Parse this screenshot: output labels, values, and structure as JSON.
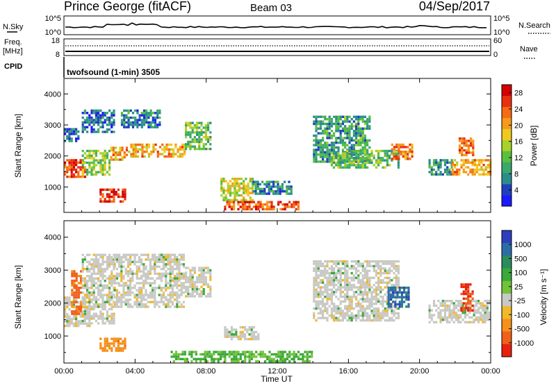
{
  "header": {
    "station": "Prince George (fitACF)",
    "beam": "Beam 03",
    "date": "04/Sep/2017"
  },
  "top_panels": {
    "nsky_label": "N.Sky",
    "nsky_ticks": [
      "10^5",
      "10^0"
    ],
    "nsearch_label": "N.Search",
    "nsearch_ticks": [
      "10^5",
      "10^0"
    ],
    "freq_label_1": "Freq.",
    "freq_label_2": "[MHz]",
    "freq_ticks": [
      "18",
      "8"
    ],
    "nave_label": "Nave",
    "nave_ticks": [
      "60",
      "0"
    ],
    "cpid_label": "CPID",
    "cpid_value": "twofsound (1-min) 3505"
  },
  "colors": {
    "power_scale": [
      "#1a1aff",
      "#1f3fbf",
      "#2a8c8c",
      "#3aa86a",
      "#5abf3c",
      "#a8d12a",
      "#f0c81e",
      "#f59a1a",
      "#f56a14",
      "#e8300f",
      "#d40000"
    ],
    "velocity_scale": [
      "#2d3fbf",
      "#2b6ea6",
      "#2b8c5e",
      "#3aa83a",
      "#72c23a",
      "#c8c8c4",
      "#f0b82a",
      "#f5901a",
      "#f0601a",
      "#e8200f"
    ]
  },
  "chart_data": [
    {
      "type": "heatmap",
      "title": "",
      "quantity": "Power",
      "xlabel": "",
      "ylabel": "Slant Range [km]",
      "x_ticks": [
        "00:00",
        "04:00",
        "08:00",
        "12:00",
        "16:00",
        "20:00",
        "00:00"
      ],
      "xlim_hours": [
        0,
        24
      ],
      "y_ticks": [
        1000,
        2000,
        3000,
        4000
      ],
      "ylim_km": [
        180,
        4500
      ],
      "colorbar_label": "Power [dB]",
      "colorbar_ticks": [
        4,
        8,
        12,
        16,
        20,
        24,
        28
      ],
      "colorbar_range": [
        0,
        30
      ],
      "echo_regions": [
        {
          "t0": 0.0,
          "t1": 1.2,
          "r0": 1300,
          "r1": 1900,
          "level": 26
        },
        {
          "t0": 0.0,
          "t1": 0.8,
          "r0": 2500,
          "r1": 2900,
          "level": 6
        },
        {
          "t0": 1.0,
          "t1": 2.6,
          "r0": 1400,
          "r1": 2200,
          "level": 14
        },
        {
          "t0": 1.0,
          "t1": 2.8,
          "r0": 2800,
          "r1": 3500,
          "level": 6
        },
        {
          "t0": 2.6,
          "t1": 3.6,
          "r0": 1900,
          "r1": 2300,
          "level": 20
        },
        {
          "t0": 2.0,
          "t1": 3.4,
          "r0": 550,
          "r1": 950,
          "level": 27
        },
        {
          "t0": 3.6,
          "t1": 6.8,
          "r0": 1950,
          "r1": 2400,
          "level": 20
        },
        {
          "t0": 3.2,
          "t1": 5.4,
          "r0": 2900,
          "r1": 3500,
          "level": 7
        },
        {
          "t0": 6.8,
          "t1": 8.2,
          "r0": 2200,
          "r1": 3100,
          "level": 12
        },
        {
          "t0": 8.8,
          "t1": 10.6,
          "r0": 600,
          "r1": 1300,
          "level": 16
        },
        {
          "t0": 10.6,
          "t1": 12.8,
          "r0": 800,
          "r1": 1200,
          "level": 7
        },
        {
          "t0": 9.0,
          "t1": 13.2,
          "r0": 300,
          "r1": 550,
          "level": 24
        },
        {
          "t0": 14.0,
          "t1": 17.2,
          "r0": 1800,
          "r1": 3300,
          "level": 9
        },
        {
          "t0": 15.0,
          "t1": 18.8,
          "r0": 1600,
          "r1": 2200,
          "level": 12
        },
        {
          "t0": 18.4,
          "t1": 19.6,
          "r0": 1900,
          "r1": 2400,
          "level": 22
        },
        {
          "t0": 20.5,
          "t1": 21.8,
          "r0": 1400,
          "r1": 1900,
          "level": 8
        },
        {
          "t0": 21.8,
          "t1": 24.0,
          "r0": 1400,
          "r1": 1900,
          "level": 20
        },
        {
          "t0": 22.2,
          "t1": 23.0,
          "r0": 2000,
          "r1": 2600,
          "level": 24
        }
      ]
    },
    {
      "type": "heatmap",
      "title": "",
      "quantity": "Velocity",
      "xlabel": "Time UT",
      "ylabel": "Slant Range [km]",
      "x_ticks": [
        "00:00",
        "04:00",
        "08:00",
        "12:00",
        "16:00",
        "20:00",
        "00:00"
      ],
      "xlim_hours": [
        0,
        24
      ],
      "y_ticks": [
        1000,
        2000,
        3000,
        4000
      ],
      "ylim_km": [
        180,
        4500
      ],
      "colorbar_label": "Velocity [m s⁻¹]",
      "colorbar_ticks": [
        1000,
        500,
        100,
        25,
        -25,
        -100,
        -500,
        -1000
      ],
      "colorbar_range": [
        -1000,
        1000
      ],
      "echo_regions": [
        {
          "t0": 0.0,
          "t1": 1.4,
          "r0": 1300,
          "r1": 2200,
          "level": 0
        },
        {
          "t0": 0.4,
          "t1": 1.0,
          "r0": 1700,
          "r1": 3000,
          "level": -500
        },
        {
          "t0": 1.0,
          "t1": 2.8,
          "r0": 1400,
          "r1": 3500,
          "level": 0
        },
        {
          "t0": 2.8,
          "t1": 6.8,
          "r0": 1900,
          "r1": 3500,
          "level": 0
        },
        {
          "t0": 2.0,
          "t1": 3.4,
          "r0": 550,
          "r1": 950,
          "level": -300
        },
        {
          "t0": 6.8,
          "t1": 8.2,
          "r0": 2200,
          "r1": 3100,
          "level": 0
        },
        {
          "t0": 9.0,
          "t1": 11.0,
          "r0": 900,
          "r1": 1300,
          "level": 0
        },
        {
          "t0": 6.0,
          "t1": 14.0,
          "r0": 200,
          "r1": 550,
          "level": 60
        },
        {
          "t0": 14.0,
          "t1": 18.8,
          "r0": 1500,
          "r1": 3300,
          "level": 0
        },
        {
          "t0": 18.2,
          "t1": 19.4,
          "r0": 1900,
          "r1": 2500,
          "level": 600
        },
        {
          "t0": 20.5,
          "t1": 24.0,
          "r0": 1400,
          "r1": 2100,
          "level": 0
        },
        {
          "t0": 22.3,
          "t1": 23.0,
          "r0": 1800,
          "r1": 2600,
          "level": -700
        }
      ]
    }
  ]
}
